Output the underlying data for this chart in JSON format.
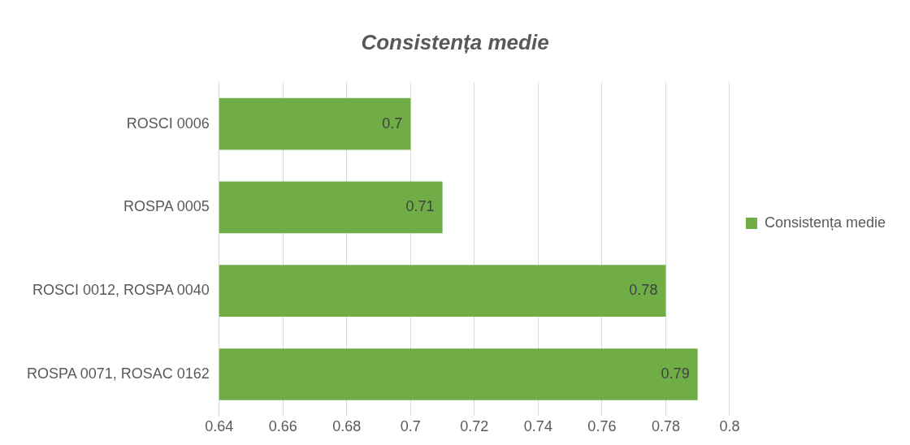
{
  "chart_data": {
    "type": "bar",
    "orientation": "horizontal",
    "title": "Consistența medie",
    "categories": [
      "ROSCI 0006",
      "ROSPA 0005",
      "ROSCI 0012, ROSPA 0040",
      "ROSPA 0071, ROSAC 0162"
    ],
    "series": [
      {
        "name": "Consistența medie",
        "color": "#70ad47",
        "values": [
          0.7,
          0.71,
          0.78,
          0.79
        ]
      }
    ],
    "xlim": [
      0.64,
      0.8
    ],
    "xticks": [
      0.64,
      0.66,
      0.68,
      0.7,
      0.72,
      0.74,
      0.76,
      0.78,
      0.8
    ],
    "grid": "x",
    "legend": "right",
    "data_labels": true
  }
}
